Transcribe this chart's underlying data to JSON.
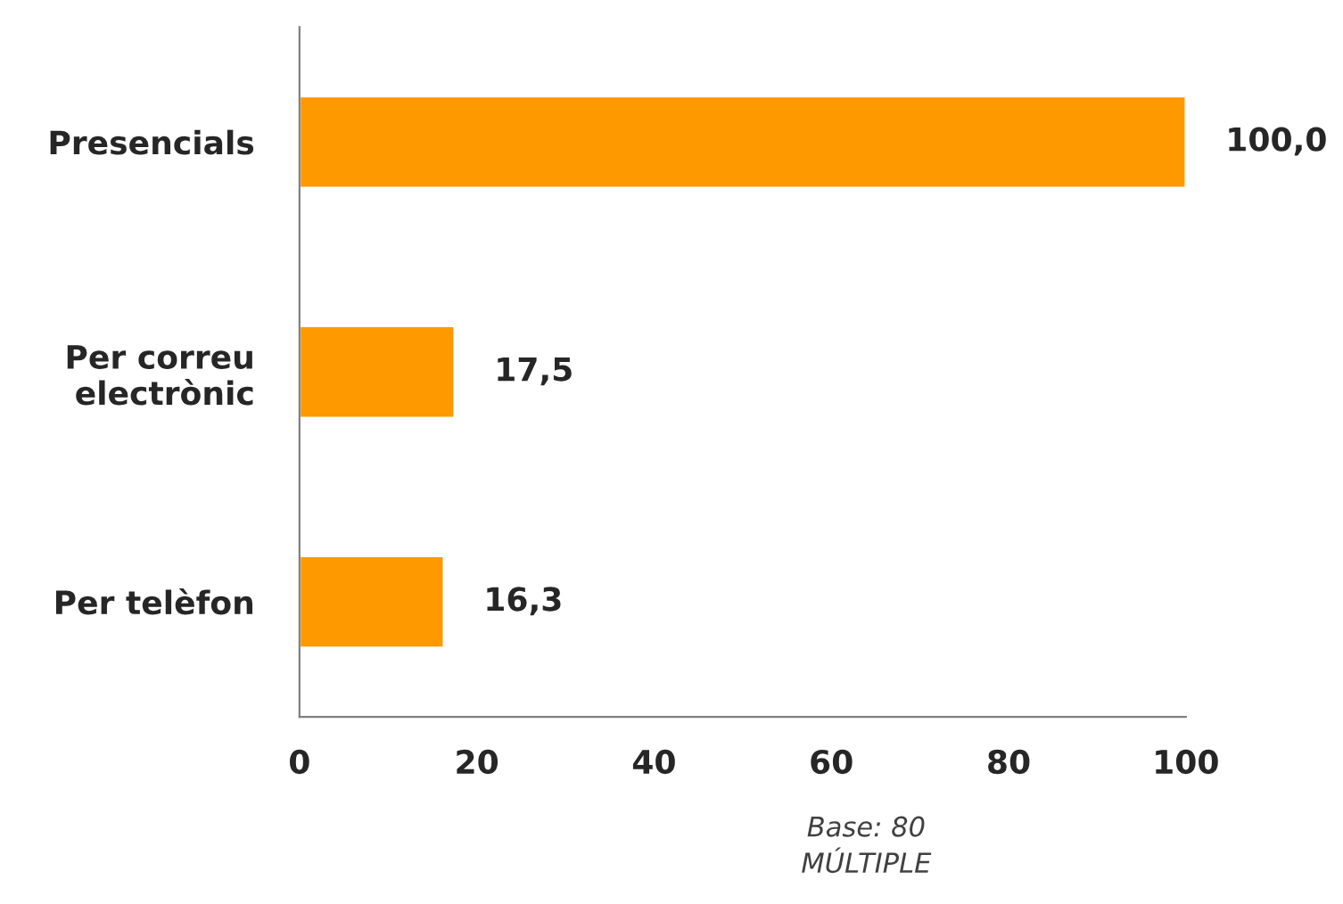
{
  "chart_data": {
    "type": "bar",
    "orientation": "horizontal",
    "categories": [
      "Presencials",
      "Per correu electrònic",
      "Per telèfon"
    ],
    "values": [
      100.0,
      17.5,
      16.3
    ],
    "value_labels": [
      "100,0",
      "17,5",
      "16,3"
    ],
    "color": "#ff9900",
    "xlim": [
      0,
      100
    ],
    "xticks": [
      0,
      20,
      40,
      60,
      80,
      100
    ],
    "grid": false,
    "legend": false,
    "annotations": [
      "Base: 80",
      "MÚLTIPLE"
    ]
  }
}
